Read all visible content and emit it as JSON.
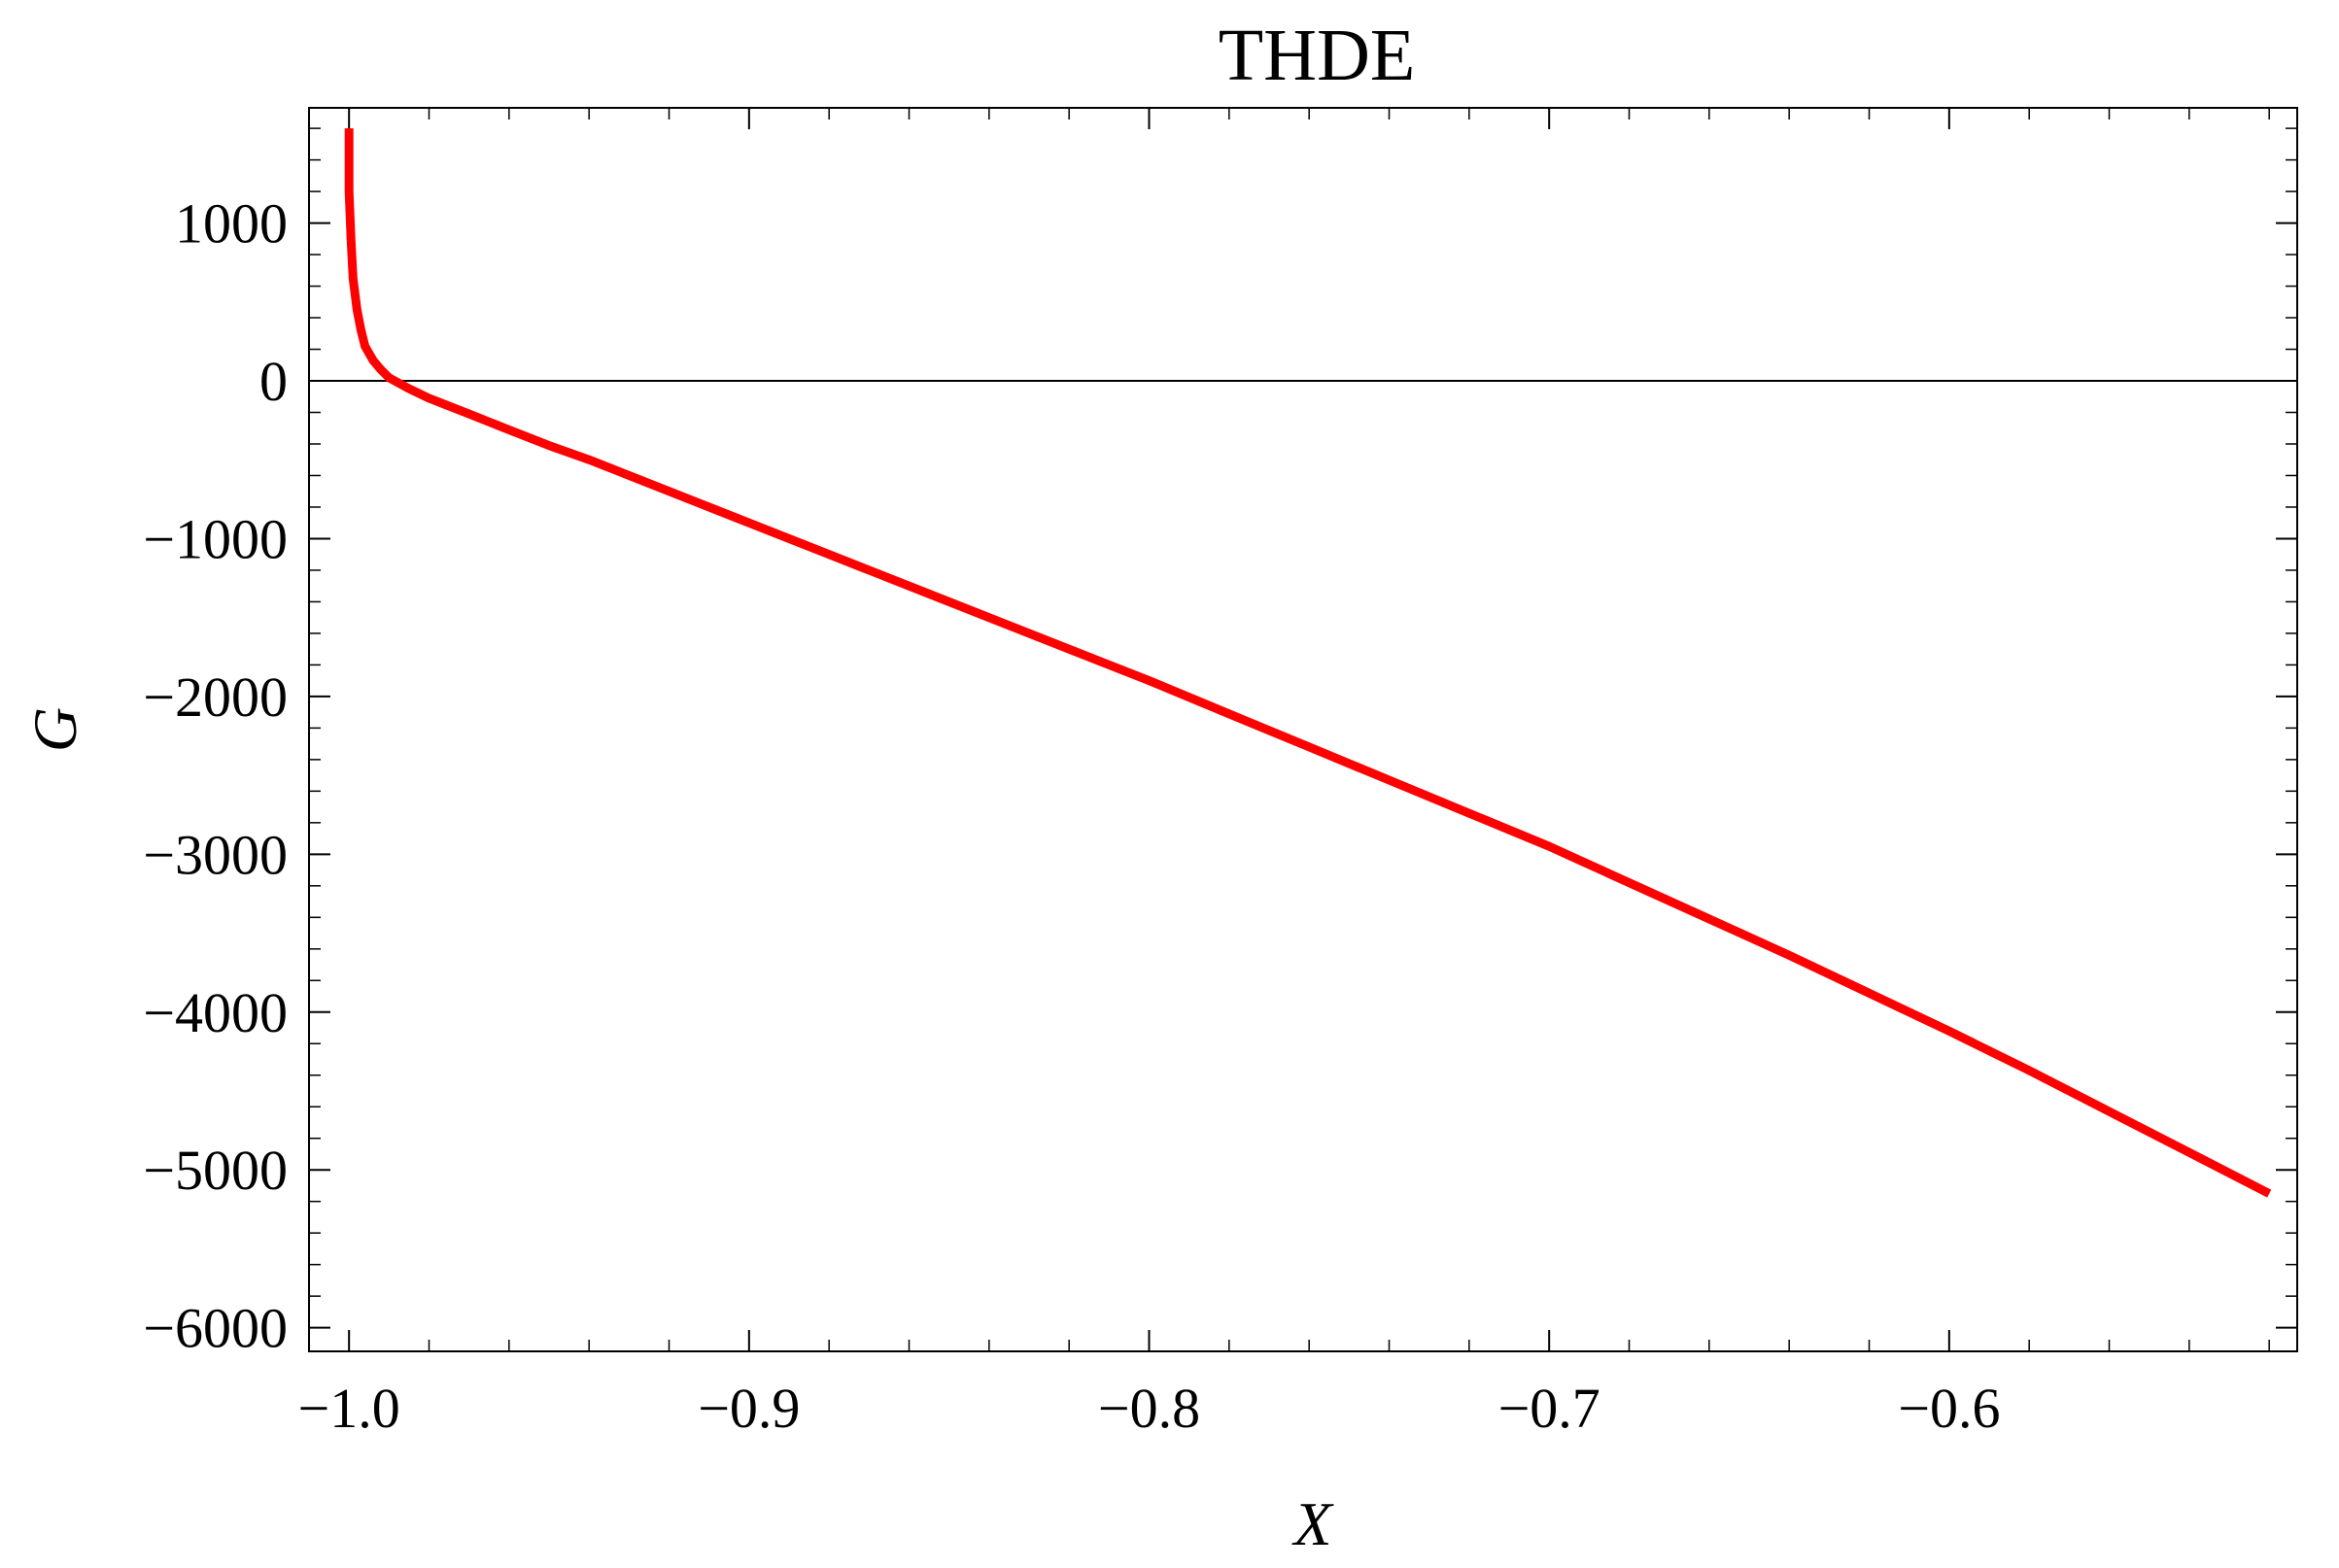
{
  "chart_data": {
    "type": "line",
    "title": "THDE",
    "xlabel": "X",
    "ylabel": "G",
    "xlim": [
      -1.01,
      -0.513
    ],
    "ylim": [
      -6150,
      1730
    ],
    "x_ticks": [
      -1.0,
      -0.9,
      -0.8,
      -0.7,
      -0.6
    ],
    "x_tick_labels": [
      "−1.0",
      "−0.9",
      "−0.8",
      "−0.7",
      "−0.6"
    ],
    "y_ticks": [
      1000,
      0,
      -1000,
      -2000,
      -3000,
      -4000,
      -5000,
      -6000
    ],
    "y_tick_labels": [
      "1000",
      "0",
      "−1000",
      "−2000",
      "−3000",
      "−4000",
      "−5000",
      "−6000"
    ],
    "grid": false,
    "legend": "none",
    "zero_line": true,
    "series": [
      {
        "color": "#ff0000",
        "x": [
          -1.0,
          -1.0,
          -0.9995,
          -0.999,
          -0.998,
          -0.997,
          -0.996,
          -0.994,
          -0.992,
          -0.99,
          -0.985,
          -0.98,
          -0.97,
          -0.96,
          -0.95,
          -0.94,
          -0.92,
          -0.9,
          -0.88,
          -0.86,
          -0.84,
          -0.82,
          -0.8,
          -0.78,
          -0.76,
          -0.74,
          -0.72,
          -0.7,
          -0.68,
          -0.66,
          -0.64,
          -0.62,
          -0.6,
          -0.58,
          -0.56,
          -0.54,
          -0.52
        ],
        "y": [
          1600,
          1200,
          900,
          650,
          450,
          320,
          220,
          130,
          70,
          20,
          -50,
          -110,
          -210,
          -310,
          -410,
          -500,
          -700,
          -900,
          -1100,
          -1300,
          -1500,
          -1700,
          -1900,
          -2110,
          -2320,
          -2530,
          -2740,
          -2950,
          -3180,
          -3410,
          -3640,
          -3880,
          -4120,
          -4370,
          -4630,
          -4890,
          -5150
        ]
      }
    ]
  }
}
